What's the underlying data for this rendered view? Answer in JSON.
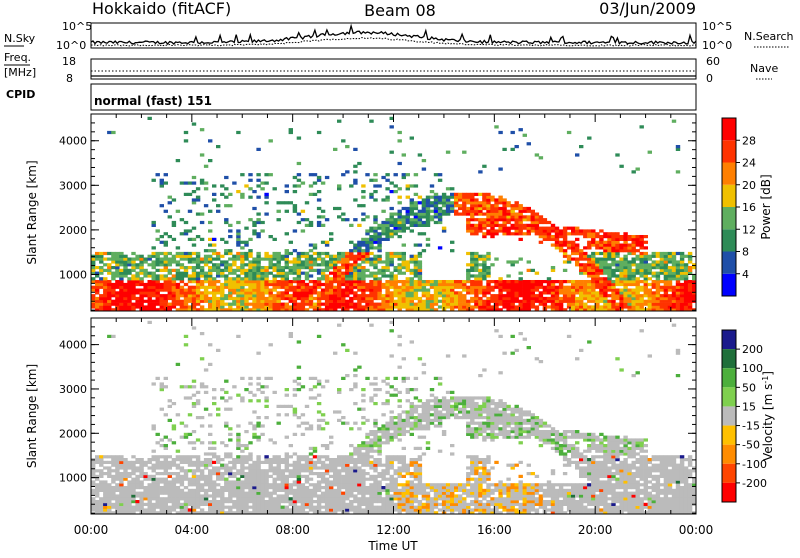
{
  "header": {
    "station": "Hokkaido (fitACF)",
    "beam": "Beam 08",
    "date": "03/Jun/2009"
  },
  "summary_panels": {
    "nsky_label": "N.Sky",
    "nsearch_label": "N.Search",
    "nsky_ticks": [
      "10^5",
      "10^0"
    ],
    "nsearch_ticks": [
      "10^5",
      "10^0"
    ],
    "freq_label": "Freq.",
    "freq_unit": "[MHz]",
    "freq_ticks": [
      "18",
      "8"
    ],
    "nave_label": "Nave",
    "nave_ticks": [
      "60",
      "0"
    ],
    "cpid_label": "CPID",
    "cpid_text": "normal (fast) 151"
  },
  "colors": {
    "power": [
      "#0000ff",
      "#1f4fa8",
      "#2e8b57",
      "#5fae5f",
      "#f0c000",
      "#ff7f00",
      "#ff3300",
      "#ff0000"
    ],
    "velocity_pos": [
      "#1a1a8c",
      "#1f6f3a",
      "#4caf3c",
      "#7fd04f"
    ],
    "velocity_ground": "#bbbbbb",
    "velocity_neg": [
      "#ffc000",
      "#ff8c00",
      "#ff4500",
      "#ff0000"
    ]
  },
  "chart_data": [
    {
      "type": "heatmap",
      "title": "Power",
      "ylabel": "Slant Range [km]",
      "xlabel": "Time UT",
      "ylim": [
        180,
        4600
      ],
      "x_ticks": [
        "00:00",
        "04:00",
        "08:00",
        "12:00",
        "16:00",
        "20:00",
        "00:00"
      ],
      "y_ticks": [
        1000,
        2000,
        3000,
        4000
      ],
      "colorbar": {
        "label": "Power [dB]",
        "ticks": [
          4,
          8,
          12,
          16,
          20,
          24,
          28
        ],
        "range": [
          0,
          32
        ]
      }
    },
    {
      "type": "heatmap",
      "title": "Velocity",
      "ylabel": "Slant Range [km]",
      "xlabel": "Time UT",
      "ylim": [
        180,
        4600
      ],
      "x_ticks": [
        "00:00",
        "04:00",
        "08:00",
        "12:00",
        "16:00",
        "20:00",
        "00:00"
      ],
      "y_ticks": [
        1000,
        2000,
        3000,
        4000
      ],
      "colorbar": {
        "label": "Velocity [m s^-1]",
        "ticks": [
          200,
          100,
          50,
          15,
          -15,
          -50,
          -100,
          -200
        ]
      }
    }
  ]
}
